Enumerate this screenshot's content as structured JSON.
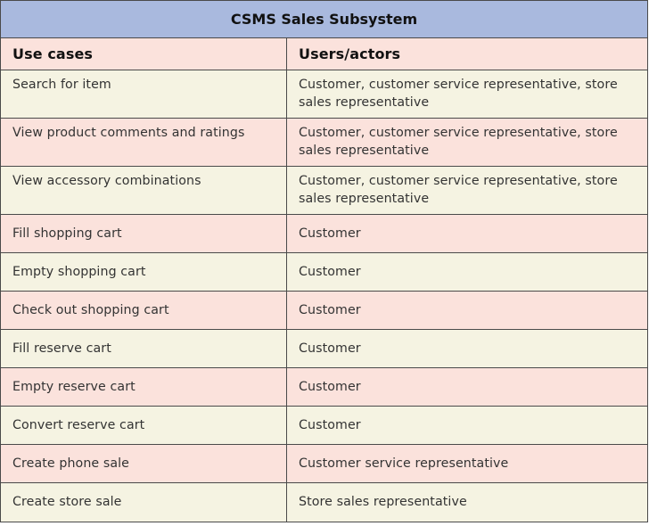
{
  "table": {
    "title": "CSMS Sales Subsystem",
    "headers": [
      "Use cases",
      "Users/actors"
    ],
    "rows": [
      {
        "use_case": "Search for item",
        "actors": "Customer, customer service representative, store sales representative"
      },
      {
        "use_case": "View product comments and ratings",
        "actors": "Customer, customer service representative, store sales representative"
      },
      {
        "use_case": "View accessory combinations",
        "actors": "Customer, customer service representative, store sales representative"
      },
      {
        "use_case": "Fill shopping cart",
        "actors": "Customer"
      },
      {
        "use_case": "Empty shopping cart",
        "actors": "Customer"
      },
      {
        "use_case": "Check out shopping cart",
        "actors": "Customer"
      },
      {
        "use_case": "Fill reserve cart",
        "actors": "Customer"
      },
      {
        "use_case": "Empty reserve cart",
        "actors": "Customer"
      },
      {
        "use_case": "Convert reserve cart",
        "actors": "Customer"
      },
      {
        "use_case": "Create phone sale",
        "actors": "Customer service representative"
      },
      {
        "use_case": "Create store sale",
        "actors": "Store sales representative"
      }
    ],
    "colors": {
      "title_bg": "#a9b9de",
      "row_pink": "#fbe2dc",
      "row_cream": "#f5f3e2",
      "border": "#4a4a4a"
    }
  }
}
